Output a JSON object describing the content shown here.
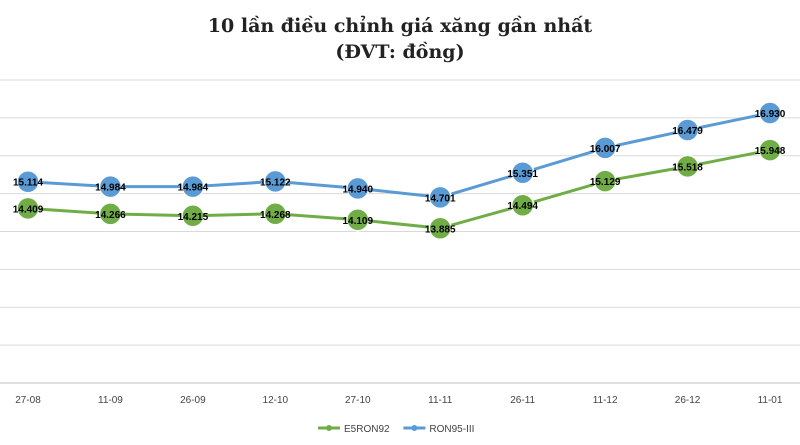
{
  "chart_data": {
    "type": "line",
    "title": "10 lần điều chỉnh giá xăng gần nhất",
    "subtitle": "(ĐVT: đồng)",
    "categories": [
      "27-08",
      "11-09",
      "26-09",
      "12-10",
      "27-10",
      "11-11",
      "26-11",
      "11-12",
      "26-12",
      "11-01"
    ],
    "series": [
      {
        "name": "E5RON92",
        "color": "#70ad47",
        "values": [
          14409,
          14266,
          14215,
          14268,
          14109,
          13885,
          14494,
          15129,
          15518,
          15948
        ],
        "labels": [
          "14.409",
          "14.266",
          "14.215",
          "14.268",
          "14.109",
          "13.885",
          "14.494",
          "15.129",
          "15.518",
          "15.948"
        ]
      },
      {
        "name": "RON95-III",
        "color": "#5b9bd5",
        "values": [
          15114,
          14984,
          14984,
          15122,
          14940,
          14701,
          15351,
          16007,
          16479,
          16930
        ],
        "labels": [
          "15.114",
          "14.984",
          "14.984",
          "15.122",
          "14.940",
          "14.701",
          "15.351",
          "16.007",
          "16.479",
          "16.930"
        ]
      }
    ],
    "ylim": [
      9800,
      17800
    ],
    "grid": true,
    "legend_position": "bottom"
  }
}
